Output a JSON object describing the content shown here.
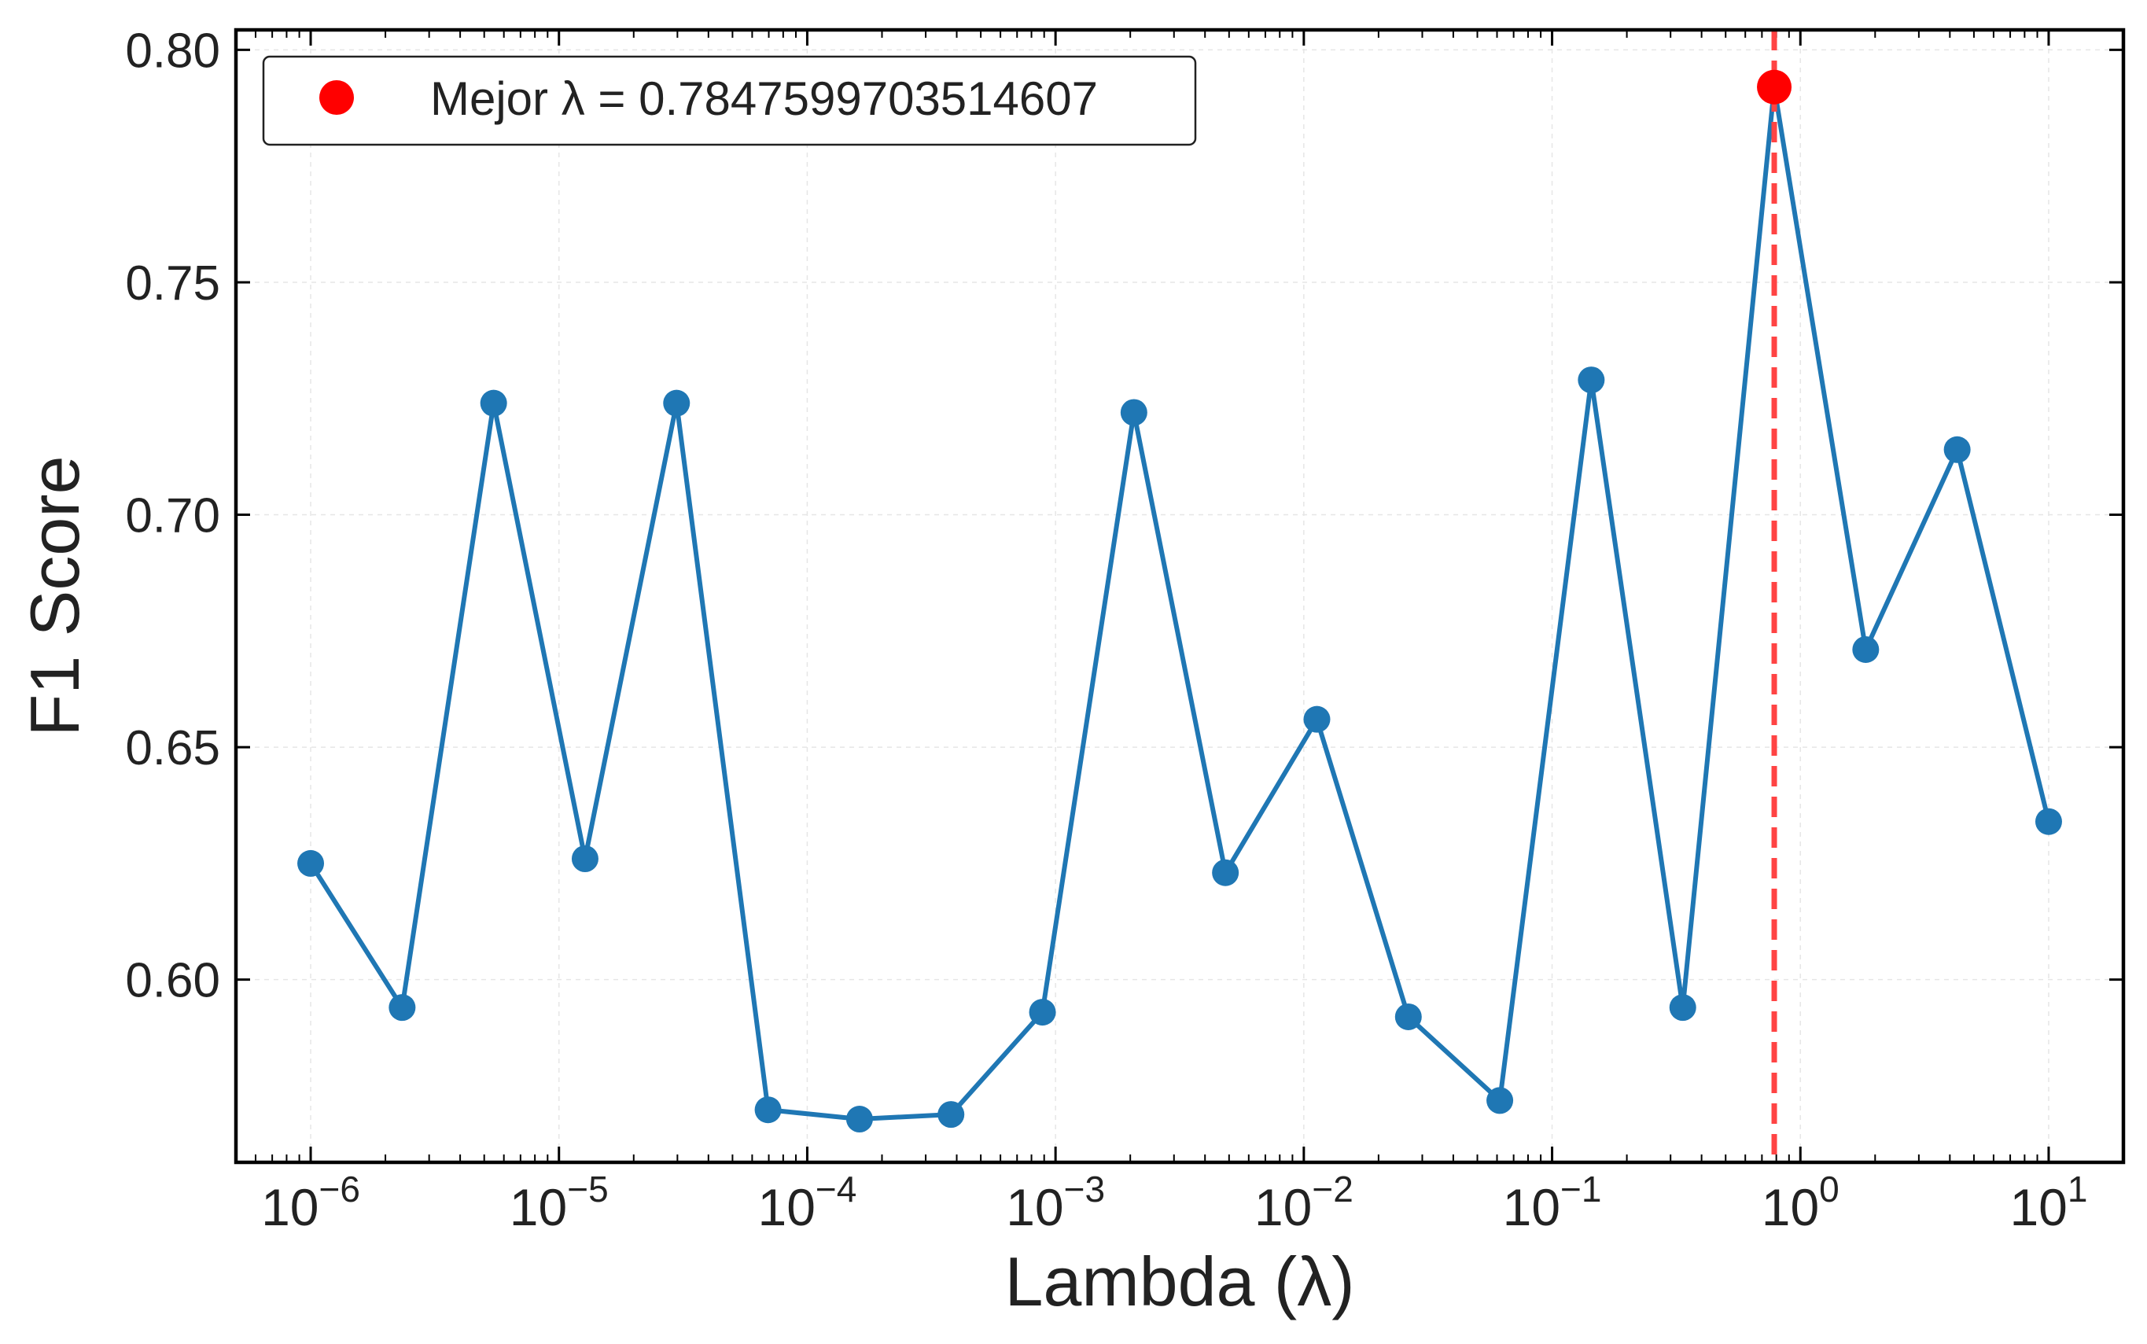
{
  "chart_data": {
    "type": "line",
    "title": "",
    "xlabel": "Lambda (λ)",
    "ylabel": "F1 Score",
    "xscale": "log",
    "xlim": [
      5e-07,
      20
    ],
    "ylim": [
      0.5607,
      0.8043
    ],
    "xticks": [
      {
        "value": 1e-06,
        "base": "10",
        "exp": "−6"
      },
      {
        "value": 1e-05,
        "base": "10",
        "exp": "−5"
      },
      {
        "value": 0.0001,
        "base": "10",
        "exp": "−4"
      },
      {
        "value": 0.001,
        "base": "10",
        "exp": "−3"
      },
      {
        "value": 0.01,
        "base": "10",
        "exp": "−2"
      },
      {
        "value": 0.1,
        "base": "10",
        "exp": "−1"
      },
      {
        "value": 1,
        "base": "10",
        "exp": "0"
      },
      {
        "value": 10,
        "base": "10",
        "exp": "1"
      }
    ],
    "yticks": [
      {
        "value": 0.6,
        "label": "0.60"
      },
      {
        "value": 0.65,
        "label": "0.65"
      },
      {
        "value": 0.7,
        "label": "0.70"
      },
      {
        "value": 0.75,
        "label": "0.75"
      },
      {
        "value": 0.8,
        "label": "0.80"
      }
    ],
    "grid": true,
    "legend_position": "top-left",
    "series": [
      {
        "color": "#1f77b4",
        "x": [
          1e-06,
          2.336e-06,
          5.456e-06,
          1.274e-05,
          2.976e-05,
          6.952e-05,
          0.0001624,
          0.0003793,
          0.0008859,
          0.002069,
          0.004833,
          0.01129,
          0.02637,
          0.06158,
          0.1438,
          0.336,
          0.7848,
          1.833,
          4.281,
          10
        ],
        "y": [
          0.625,
          0.594,
          0.724,
          0.626,
          0.724,
          0.572,
          0.57,
          0.571,
          0.593,
          0.722,
          0.623,
          0.656,
          0.592,
          0.574,
          0.729,
          0.594,
          0.792,
          0.671,
          0.714,
          0.634
        ]
      }
    ],
    "best_point": {
      "x": 0.7847599703514607,
      "y": 0.792,
      "color": "#ff0000"
    },
    "vline": {
      "x": 0.7847599703514607,
      "color": "#ff4444",
      "style": "dashed"
    },
    "legend": {
      "label": "Mejor λ = 0.7847599703514607"
    }
  }
}
